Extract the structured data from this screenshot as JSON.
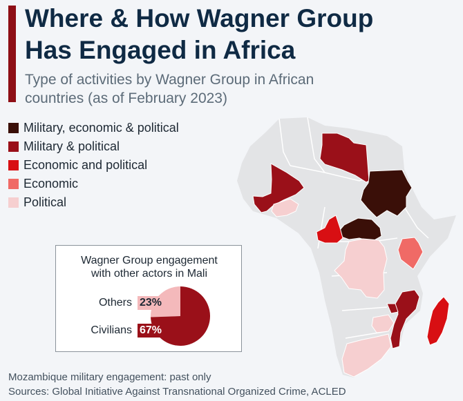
{
  "header": {
    "title_line1": "Where & How Wagner Group",
    "title_line2": "Has Engaged in Africa",
    "subtitle_line1": "Type of activities by Wagner Group in African",
    "subtitle_line2": "countries (as of February 2023)"
  },
  "legend": [
    {
      "label": "Military, economic & political",
      "color": "#3a0f08"
    },
    {
      "label": "Military & political",
      "color": "#9a1019"
    },
    {
      "label": "Economic and political",
      "color": "#d80f13"
    },
    {
      "label": "Economic",
      "color": "#f06a66"
    },
    {
      "label": "Political",
      "color": "#f6cfd0"
    }
  ],
  "map": {
    "base_color": "#e3e4e6",
    "countries": [
      {
        "name": "Libya",
        "category": "Military & political"
      },
      {
        "name": "Mali",
        "category": "Military & political"
      },
      {
        "name": "Burkina Faso",
        "category": "Political"
      },
      {
        "name": "Sudan",
        "category": "Military, economic & political"
      },
      {
        "name": "Central African Republic",
        "category": "Military, economic & political"
      },
      {
        "name": "Cameroon",
        "category": "Economic and political"
      },
      {
        "name": "DR Congo",
        "category": "Political"
      },
      {
        "name": "Kenya",
        "category": "Economic"
      },
      {
        "name": "Mozambique",
        "category": "Military & political"
      },
      {
        "name": "Madagascar",
        "category": "Economic and political"
      },
      {
        "name": "Zimbabwe",
        "category": "Political"
      },
      {
        "name": "South Africa",
        "category": "Political"
      }
    ]
  },
  "mali_inset": {
    "title_line1": "Wagner Group engagement",
    "title_line2": "with other actors in Mali",
    "slices": [
      {
        "label": "Others",
        "value_label": "23%",
        "value": 23,
        "color": "#f4b9bb"
      },
      {
        "label": "Civilians",
        "value_label": "67%",
        "value": 67,
        "color": "#9a1019"
      }
    ]
  },
  "footer": {
    "note": "Mozambique military engagement: past only",
    "sources": "Sources: Global Initiative Against Transnational Organized Crime, ACLED"
  }
}
